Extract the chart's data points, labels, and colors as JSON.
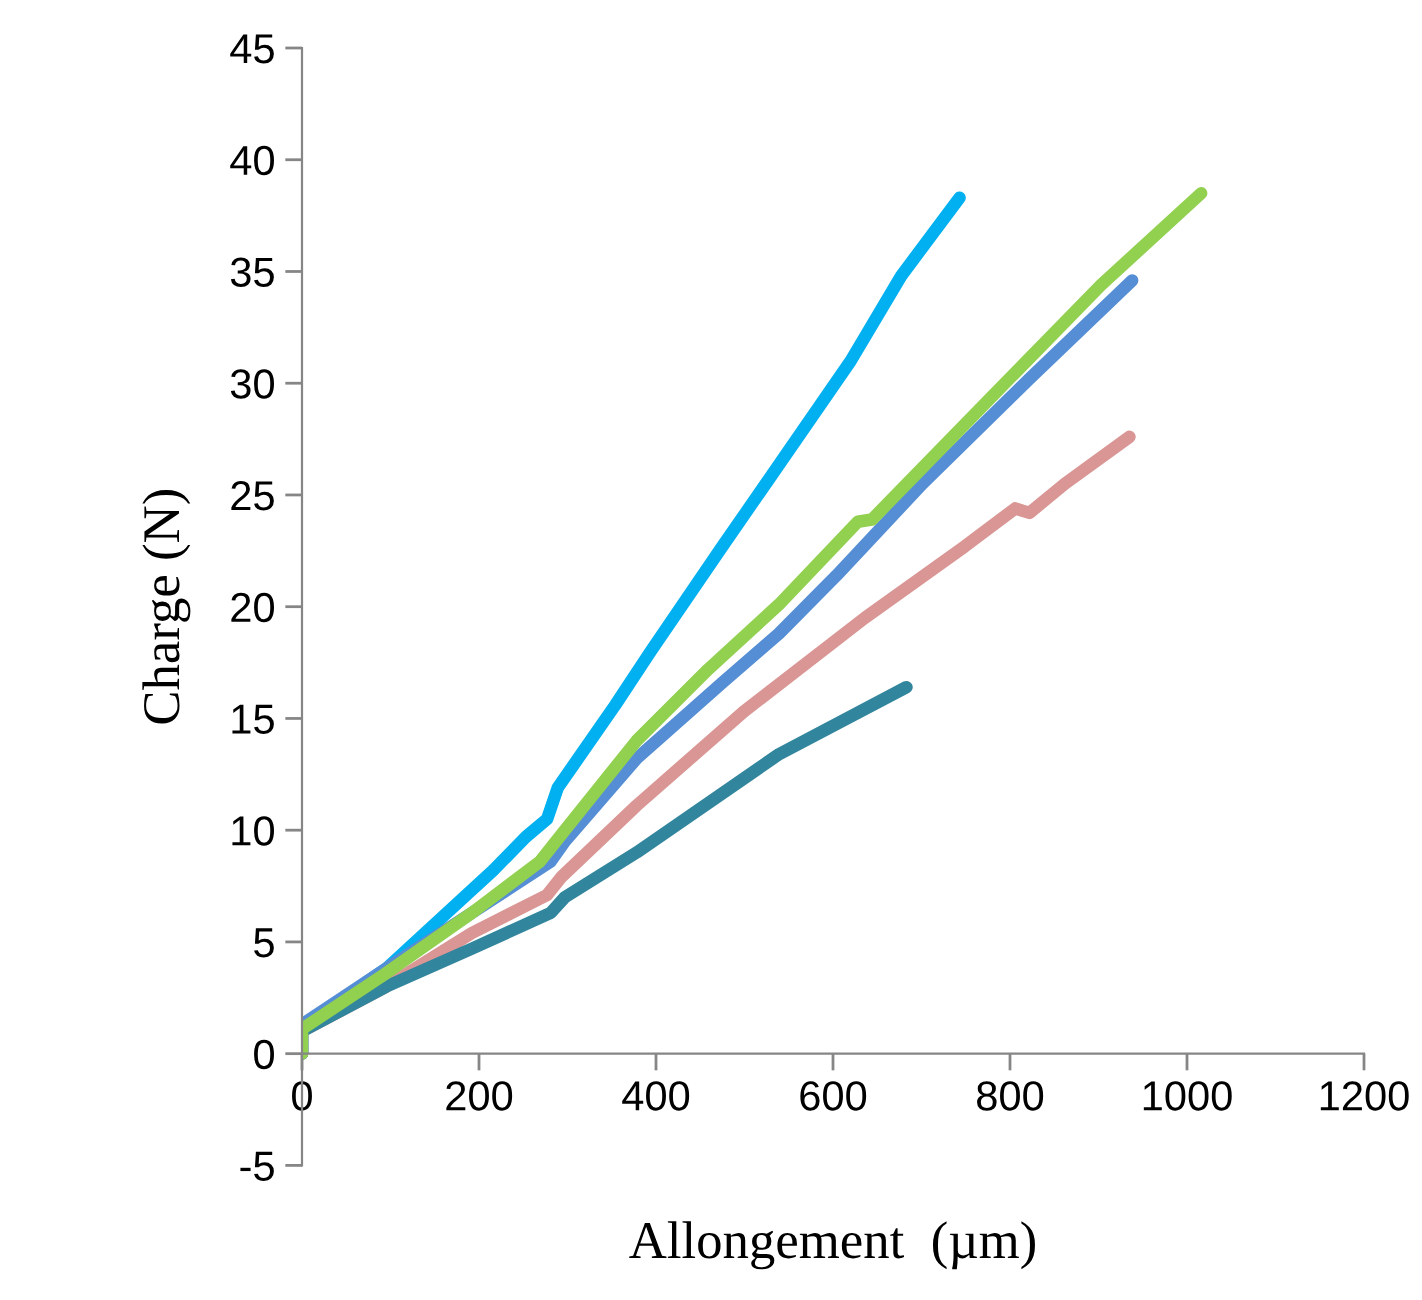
{
  "chart_data": {
    "type": "line",
    "xlabel": "Allongement  (µm)",
    "ylabel": "Charge (N)",
    "xlim": [
      0,
      1200
    ],
    "xticks": [
      0,
      200,
      400,
      600,
      800,
      1000,
      1200
    ],
    "ylim": [
      -5,
      45
    ],
    "yticks": [
      -5,
      0,
      5,
      10,
      15,
      20,
      25,
      30,
      35,
      40,
      45
    ],
    "grid": false,
    "legend": false,
    "marker": "none",
    "line_style": "solid",
    "series": [
      {
        "color": "#00b0f0",
        "x": [
          0,
          0,
          95,
          216,
          253,
          277,
          289,
          354,
          394,
          475,
          531,
          620,
          677,
          743
        ],
        "values": [
          0,
          1.2,
          3.8,
          8.2,
          9.7,
          10.5,
          11.9,
          15.6,
          18.0,
          22.7,
          25.9,
          31.0,
          34.8,
          38.3
        ]
      },
      {
        "color": "#558ed5",
        "x": [
          0,
          0,
          95,
          192,
          281,
          297,
          378,
          475,
          539,
          604,
          701,
          822,
          938
        ],
        "values": [
          0,
          1.3,
          3.8,
          6.3,
          8.6,
          9.5,
          13.2,
          16.6,
          18.8,
          21.4,
          25.5,
          30.2,
          34.6
        ]
      },
      {
        "color": "#d99694",
        "x": [
          0,
          0,
          95,
          192,
          277,
          293,
          378,
          499,
          636,
          749,
          806,
          822,
          862,
          935
        ],
        "values": [
          0,
          1.0,
          3.0,
          5.4,
          7.1,
          7.9,
          11.1,
          15.3,
          19.5,
          22.7,
          24.4,
          24.2,
          25.5,
          27.6
        ]
      },
      {
        "color": "#31859c",
        "x": [
          0,
          0,
          95,
          192,
          281,
          297,
          378,
          539,
          683
        ],
        "values": [
          0,
          1.0,
          3.0,
          4.7,
          6.3,
          7.0,
          9.0,
          13.4,
          16.4
        ]
      },
      {
        "color": "#92d050",
        "x": [
          0,
          0,
          95,
          192,
          269,
          293,
          378,
          459,
          539,
          628,
          644,
          782,
          903,
          1016
        ],
        "values": [
          0,
          1.1,
          3.6,
          6.3,
          8.6,
          9.8,
          14.0,
          17.2,
          20.1,
          23.8,
          23.9,
          29.5,
          34.4,
          38.5
        ]
      }
    ]
  }
}
